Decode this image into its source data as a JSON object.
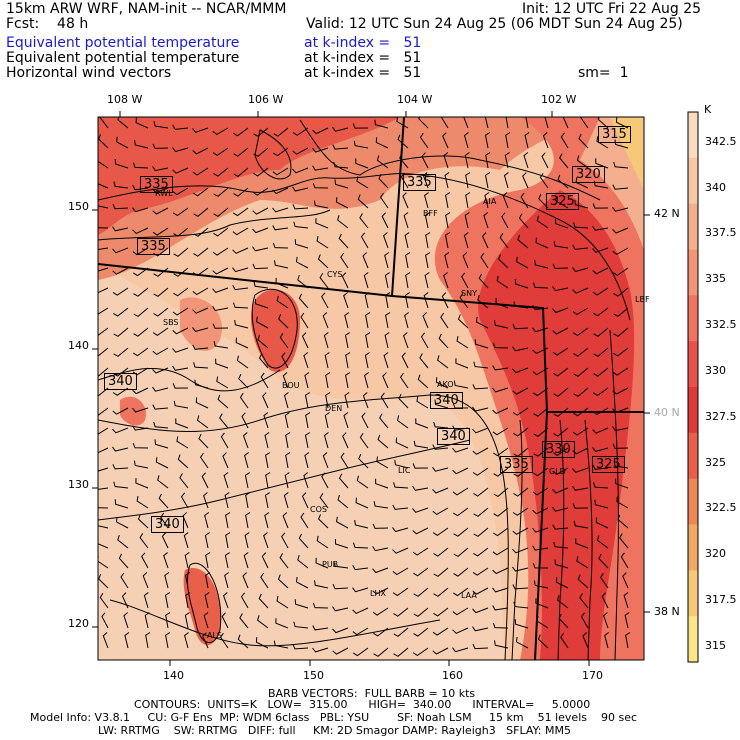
{
  "header": {
    "model": "15km ARW WRF, NAM-init -- NCAR/MMM",
    "init": "Init: 12 UTC Fri 22 Aug 25",
    "fcst": "Fcst:    48 h",
    "valid": "Valid: 12 UTC Sun 24 Aug 25 (06 MDT Sun 24 Aug 25)",
    "fields": [
      {
        "name": "Equivalent potential temperature",
        "level": "at k-index =   51",
        "color": "#1a1ad0"
      },
      {
        "name": "Equivalent potential temperature",
        "level": "at k-index =   51",
        "color": "#000000"
      },
      {
        "name": "Horizontal wind vectors",
        "level": "at k-index =   51",
        "color": "#000000"
      }
    ],
    "smoothing": "sm=  1"
  },
  "axes": {
    "top_longitudes": [
      "108 W",
      "106 W",
      "104 W",
      "102 W"
    ],
    "right_latitudes": [
      "42 N",
      "40 N",
      "38 N"
    ],
    "left_ticks": [
      "150",
      "140",
      "130",
      "120"
    ],
    "bottom_ticks": [
      "140",
      "150",
      "160",
      "170"
    ]
  },
  "colorbar": {
    "unit": "K",
    "labels": [
      "342.5",
      "340",
      "337.5",
      "335",
      "332.5",
      "330",
      "327.5",
      "325",
      "322.5",
      "320",
      "317.5",
      "315"
    ],
    "colors": [
      "#f9dcc0",
      "#f6c8a6",
      "#f4b08e",
      "#f29478",
      "#ee7460",
      "#e8524a",
      "#de3a3a",
      "#e8604a",
      "#ee8658",
      "#f2a868",
      "#f6c878",
      "#fae588"
    ]
  },
  "contour_labels": [
    "315",
    "320",
    "325",
    "335",
    "335",
    "335",
    "340",
    "340",
    "340",
    "340",
    "330",
    "335",
    "325"
  ],
  "stations": [
    "RWL",
    "BFF",
    "AIA",
    "CYS",
    "SNY",
    "SBS",
    "LBF",
    "BOU",
    "AKO",
    "DEN",
    "LIC",
    "GLD",
    "COS",
    "PUB",
    "LHX",
    "LAA",
    "ALS"
  ],
  "footer": {
    "barb": "BARB VECTORS:  FULL BARB = 10 kts",
    "contours": "CONTOURS:  UNITS=K   LOW=  315.00      HIGH=  340.00      INTERVAL=     5.0000",
    "model_info": "Model Info: V3.8.1     CU: G-F Ens  MP: WDM 6class   PBL: YSU        SF: Noah LSM     15 km    51 levels    90 sec",
    "physics": "LW: RRTMG    SW: RRTMG   DIFF: full     KM: 2D Smagor DAMP: Rayleigh3   SFLAY: MM5"
  }
}
